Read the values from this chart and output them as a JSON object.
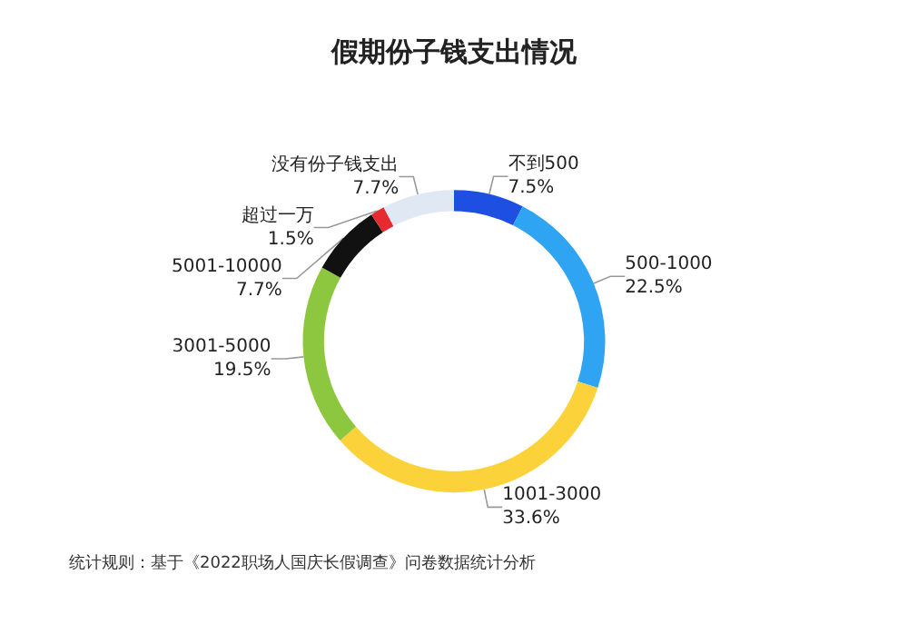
{
  "chart_data": {
    "type": "donut",
    "title": "假期份子钱支出情况",
    "categories": [
      "不到500",
      "500-1000",
      "1001-3000",
      "3001-5000",
      "5001-10000",
      "超过一万",
      "没有份子钱支出"
    ],
    "values": [
      7.5,
      22.5,
      33.6,
      19.5,
      7.7,
      1.5,
      7.7
    ],
    "colors": [
      "#1d4fe3",
      "#2ea4f3",
      "#fcd23a",
      "#8dc63f",
      "#111111",
      "#e62a2f",
      "#dfe8f3"
    ],
    "value_labels": [
      "7.5%",
      "22.5%",
      "33.6%",
      "19.5%",
      "7.7%",
      "1.5%",
      "7.7%"
    ],
    "legend": false,
    "annotations": [
      "统计规则：基于《2022职场人国庆长假调查》问卷数据统计分析"
    ]
  }
}
